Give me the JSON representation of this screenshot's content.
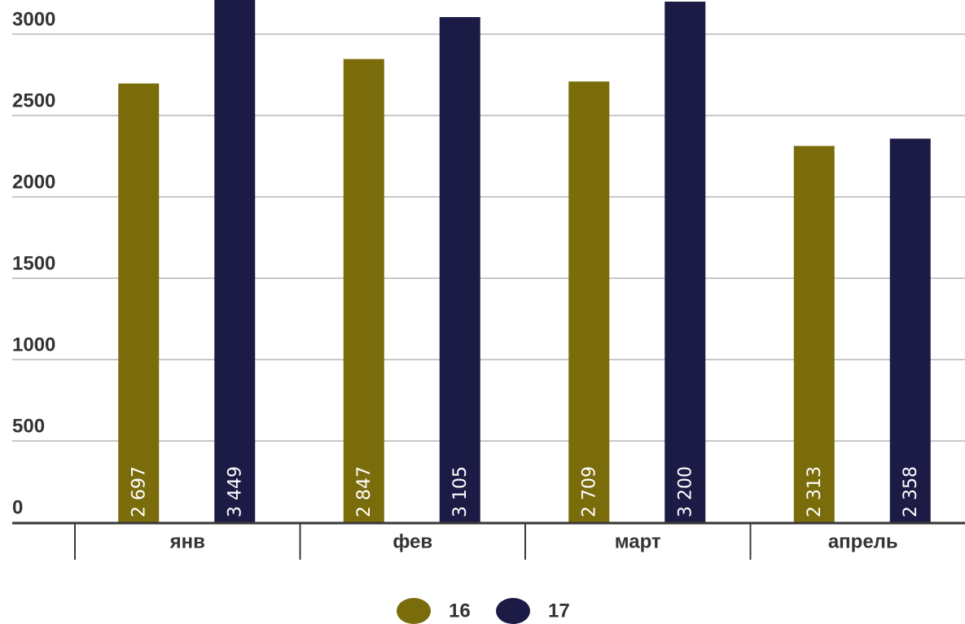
{
  "chart_data": {
    "type": "bar",
    "categories": [
      "янв",
      "фев",
      "март",
      "апрель"
    ],
    "series": [
      {
        "name": "16",
        "color": "#7a6c0b",
        "values": [
          2697,
          2847,
          2709,
          2313
        ],
        "value_labels": [
          "2 697",
          "2 847",
          "2 709",
          "2 313"
        ]
      },
      {
        "name": "17",
        "color": "#1b1b45",
        "values": [
          3449,
          3105,
          3200,
          2358
        ],
        "value_labels": [
          "3 449",
          "3 105",
          "3 200",
          "2 358"
        ]
      }
    ],
    "ylim": [
      0,
      3210
    ],
    "yticks": [
      0,
      500,
      1000,
      1500,
      2000,
      2500,
      3000
    ],
    "grid": true
  }
}
